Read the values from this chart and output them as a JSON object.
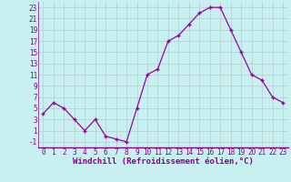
{
  "x": [
    0,
    1,
    2,
    3,
    4,
    5,
    6,
    7,
    8,
    9,
    10,
    11,
    12,
    13,
    14,
    15,
    16,
    17,
    18,
    19,
    20,
    21,
    22,
    23
  ],
  "y": [
    4,
    6,
    5,
    3,
    1,
    3,
    0,
    -0.5,
    -1,
    5,
    11,
    12,
    17,
    18,
    20,
    22,
    23,
    23,
    19,
    15,
    11,
    10,
    7,
    6
  ],
  "line_color": "#990099",
  "marker_color": "#990099",
  "bg_color": "#c8f0f0",
  "grid_color": "#b8d8d8",
  "xlabel": "Windchill (Refroidissement éolien,°C)",
  "xlim": [
    -0.5,
    23.5
  ],
  "ylim": [
    -2,
    24
  ],
  "yticks": [
    -1,
    1,
    3,
    5,
    7,
    9,
    11,
    13,
    15,
    17,
    19,
    21,
    23
  ],
  "xticks": [
    0,
    1,
    2,
    3,
    4,
    5,
    6,
    7,
    8,
    9,
    10,
    11,
    12,
    13,
    14,
    15,
    16,
    17,
    18,
    19,
    20,
    21,
    22,
    23
  ],
  "tick_fontsize": 5.5,
  "xlabel_fontsize": 6.5
}
